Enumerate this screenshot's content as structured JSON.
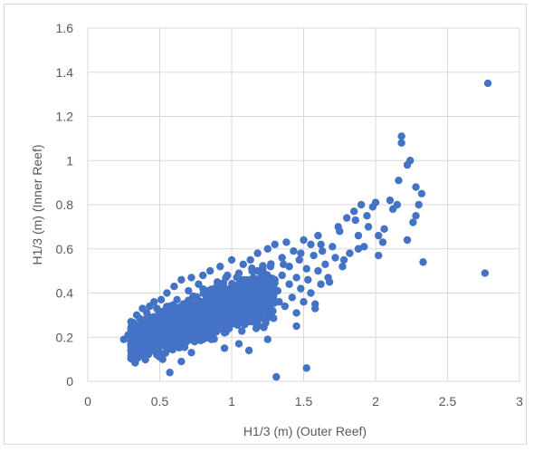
{
  "chart_data": {
    "type": "scatter",
    "title": "",
    "xlabel": "H1/3 (m) (Outer Reef)",
    "ylabel": "H1/3 (m)  (Inner Reef)",
    "xlim": [
      0,
      3
    ],
    "ylim": [
      0,
      1.6
    ],
    "x_ticks": [
      0,
      0.5,
      1,
      1.5,
      2,
      2.5,
      3
    ],
    "x_tick_labels": [
      "0",
      "0.5",
      "1",
      "1.5",
      "2",
      "2.5",
      "3"
    ],
    "y_ticks": [
      0,
      0.2,
      0.4,
      0.6,
      0.8,
      1.0,
      1.2,
      1.4,
      1.6
    ],
    "y_tick_labels": [
      "0",
      "0.2",
      "0.4",
      "0.6",
      "0.8",
      "1",
      "1.2",
      "1.4",
      "1.6"
    ],
    "grid": true,
    "legend": "none",
    "marker_color": "#4472c4",
    "gridline_color": "#d9d9d9",
    "series": [
      {
        "x": [
          0.25,
          0.28,
          0.3,
          0.3,
          0.32,
          0.33,
          0.34,
          0.35,
          0.36,
          0.37,
          0.38,
          0.38,
          0.4,
          0.4,
          0.41,
          0.42,
          0.43,
          0.44,
          0.45,
          0.46,
          0.47,
          0.48,
          0.48,
          0.5,
          0.5,
          0.51,
          0.52,
          0.53,
          0.55,
          0.55,
          0.56,
          0.57,
          0.58,
          0.6,
          0.6,
          0.61,
          0.62,
          0.63,
          0.64,
          0.65,
          0.66,
          0.67,
          0.68,
          0.7,
          0.7,
          0.71,
          0.72,
          0.74,
          0.75,
          0.76,
          0.77,
          0.78,
          0.8,
          0.8,
          0.82,
          0.83,
          0.85,
          0.85,
          0.86,
          0.88,
          0.9,
          0.9,
          0.92,
          0.93,
          0.95,
          0.95,
          0.97,
          0.98,
          1.0,
          1.0,
          1.02,
          1.03,
          1.05,
          1.05,
          1.07,
          1.08,
          1.1,
          1.1,
          1.12,
          1.13,
          1.15,
          1.15,
          1.17,
          1.18,
          1.2,
          1.2,
          1.22,
          1.23,
          1.25,
          1.25,
          1.27,
          1.28,
          1.3,
          1.3,
          1.32,
          1.33,
          1.35,
          1.35,
          1.37,
          1.38,
          1.4,
          1.4,
          1.42,
          1.43,
          1.45,
          1.45,
          1.47,
          1.48,
          1.5,
          1.5,
          1.52,
          1.53,
          1.55,
          1.55,
          1.57,
          1.58,
          1.6,
          1.6,
          1.62,
          1.63,
          1.65,
          1.67,
          1.7,
          1.72,
          1.75,
          1.77,
          1.8,
          1.82,
          1.85,
          1.88,
          1.9,
          1.92,
          1.95,
          1.98,
          2.0,
          2.02,
          2.05,
          2.1,
          2.15,
          2.18,
          2.18,
          2.22,
          2.24,
          2.26,
          2.28,
          2.3,
          2.32,
          2.33,
          2.76,
          2.78,
          1.31,
          1.52,
          0.57,
          0.52,
          0.48,
          0.65,
          0.72,
          0.95,
          1.05,
          1.12,
          1.25,
          1.45,
          1.58,
          1.68,
          1.78,
          1.88,
          2.02,
          2.12,
          2.22,
          2.28,
          0.82,
          0.88,
          0.96,
          1.18,
          1.36,
          1.48,
          1.62,
          1.74,
          1.86,
          1.94,
          2.06,
          2.16
        ],
        "y": [
          0.19,
          0.21,
          0.18,
          0.27,
          0.22,
          0.14,
          0.3,
          0.25,
          0.17,
          0.28,
          0.21,
          0.33,
          0.26,
          0.12,
          0.31,
          0.19,
          0.34,
          0.24,
          0.15,
          0.36,
          0.28,
          0.2,
          0.33,
          0.27,
          0.11,
          0.37,
          0.23,
          0.3,
          0.18,
          0.4,
          0.26,
          0.34,
          0.21,
          0.29,
          0.43,
          0.16,
          0.37,
          0.25,
          0.32,
          0.46,
          0.2,
          0.35,
          0.28,
          0.41,
          0.19,
          0.33,
          0.47,
          0.26,
          0.38,
          0.22,
          0.44,
          0.31,
          0.36,
          0.48,
          0.24,
          0.41,
          0.3,
          0.5,
          0.19,
          0.37,
          0.45,
          0.27,
          0.52,
          0.33,
          0.4,
          0.22,
          0.48,
          0.35,
          0.3,
          0.55,
          0.42,
          0.26,
          0.49,
          0.37,
          0.31,
          0.53,
          0.44,
          0.28,
          0.41,
          0.55,
          0.35,
          0.47,
          0.24,
          0.58,
          0.39,
          0.5,
          0.32,
          0.45,
          0.6,
          0.38,
          0.52,
          0.29,
          0.46,
          0.62,
          0.41,
          0.36,
          0.56,
          0.48,
          0.34,
          0.63,
          0.44,
          0.52,
          0.38,
          0.59,
          0.47,
          0.31,
          0.55,
          0.42,
          0.64,
          0.36,
          0.51,
          0.46,
          0.62,
          0.4,
          0.57,
          0.33,
          0.5,
          0.66,
          0.44,
          0.59,
          0.53,
          0.47,
          0.61,
          0.56,
          0.68,
          0.52,
          0.74,
          0.58,
          0.77,
          0.66,
          0.8,
          0.61,
          0.7,
          0.79,
          0.81,
          0.57,
          0.63,
          0.82,
          0.8,
          1.11,
          1.08,
          0.98,
          1.0,
          0.72,
          0.75,
          0.8,
          0.85,
          0.54,
          0.49,
          1.35,
          0.02,
          0.06,
          0.04,
          0.1,
          0.12,
          0.09,
          0.13,
          0.15,
          0.17,
          0.14,
          0.19,
          0.25,
          0.35,
          0.45,
          0.55,
          0.6,
          0.66,
          0.78,
          0.64,
          0.88,
          0.39,
          0.42,
          0.47,
          0.5,
          0.53,
          0.58,
          0.62,
          0.7,
          0.73,
          0.75,
          0.69,
          0.91
        ]
      }
    ]
  }
}
